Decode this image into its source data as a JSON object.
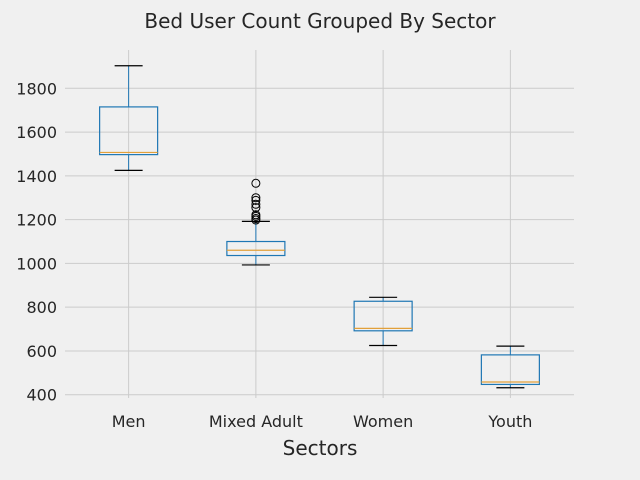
{
  "chart_data": {
    "type": "box",
    "title": "Bed User Count Grouped By Sector",
    "xlabel": "Sectors",
    "ylabel": "",
    "ylim": [
      385,
      1975
    ],
    "yticks": [
      400,
      600,
      800,
      1000,
      1200,
      1400,
      1600,
      1800
    ],
    "grid": true,
    "colors": {
      "box": "#1f77b4",
      "median": "#e2a03a",
      "grid": "#cbcbcb",
      "background": "#f0f0f0",
      "text": "#262626"
    },
    "categories": [
      "Men",
      "Mixed Adult",
      "Women",
      "Youth"
    ],
    "boxes": [
      {
        "name": "Men",
        "whisker_low": 1425,
        "q1": 1497,
        "median": 1507,
        "q3": 1715,
        "whisker_high": 1903,
        "fliers": []
      },
      {
        "name": "Mixed Adult",
        "whisker_low": 993,
        "q1": 1036,
        "median": 1060,
        "q3": 1100,
        "whisker_high": 1192,
        "fliers": [
          1198,
          1205,
          1215,
          1222,
          1255,
          1270,
          1288,
          1300,
          1366
        ]
      },
      {
        "name": "Women",
        "whisker_low": 625,
        "q1": 692,
        "median": 703,
        "q3": 827,
        "whisker_high": 845,
        "fliers": []
      },
      {
        "name": "Youth",
        "whisker_low": 432,
        "q1": 447,
        "median": 458,
        "q3": 582,
        "whisker_high": 622,
        "fliers": []
      }
    ]
  }
}
